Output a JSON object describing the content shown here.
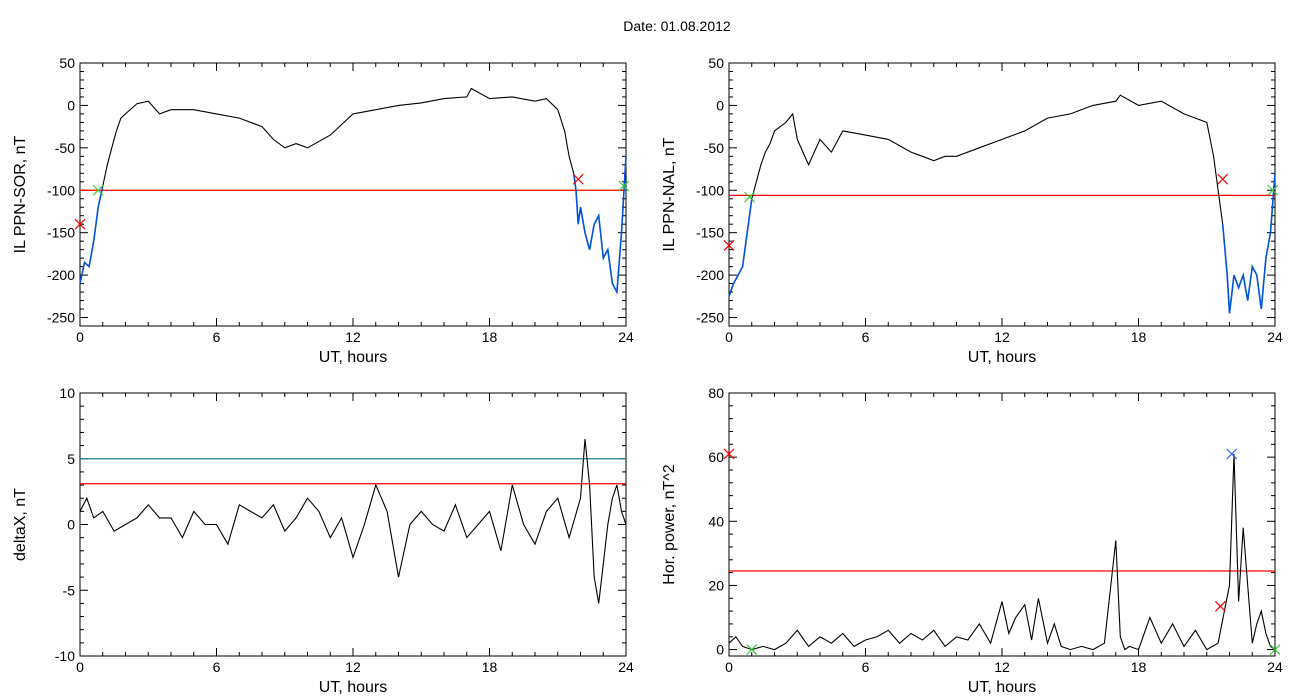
{
  "page": {
    "title": "Date:  01.08.2012"
  },
  "colors": {
    "trace": "#000000",
    "threshold": "#ff0000",
    "blue_segment": "#0055dd",
    "cyan_line": "#1a8a8a",
    "green_mark": "#33cc33",
    "blue_mark": "#3366ff"
  },
  "chart_data": [
    {
      "type": "line",
      "xlabel": "UT, hours",
      "ylabel": "IL PPN-SOR, nT",
      "xlim": [
        0,
        24
      ],
      "ylim": [
        -260,
        50
      ],
      "xticks": [
        0,
        6,
        12,
        18,
        24
      ],
      "yticks": [
        50,
        0,
        -50,
        -100,
        -150,
        -200,
        -250
      ],
      "x": [
        0,
        0.2,
        0.4,
        0.6,
        0.8,
        1.0,
        1.2,
        1.4,
        1.6,
        1.8,
        2.0,
        2.5,
        3.0,
        3.5,
        4.0,
        5.0,
        6.0,
        7.0,
        8.0,
        8.5,
        9.0,
        9.5,
        10.0,
        11.0,
        12.0,
        13.0,
        14.0,
        15.0,
        16.0,
        17.0,
        17.2,
        18.0,
        19.0,
        20.0,
        20.5,
        21.0,
        21.3,
        21.5,
        21.7,
        21.8,
        21.9,
        22.0,
        22.2,
        22.4,
        22.6,
        22.8,
        23.0,
        23.2,
        23.4,
        23.6,
        23.8,
        24.0
      ],
      "y": [
        -210,
        -185,
        -190,
        -160,
        -120,
        -95,
        -70,
        -50,
        -30,
        -15,
        -10,
        2,
        5,
        -10,
        -5,
        -5,
        -10,
        -15,
        -25,
        -40,
        -50,
        -45,
        -50,
        -35,
        -10,
        -5,
        0,
        3,
        8,
        10,
        20,
        8,
        10,
        5,
        8,
        -5,
        -30,
        -60,
        -80,
        -100,
        -140,
        -120,
        -150,
        -170,
        -140,
        -130,
        -180,
        -170,
        -210,
        -220,
        -150,
        -60
      ],
      "blue_segments": [
        [
          0,
          1.0
        ],
        [
          21.7,
          24.0
        ]
      ],
      "threshold": -100,
      "markers": [
        {
          "x": 0.0,
          "y": -140,
          "symbol": "x",
          "color": "#ff0000"
        },
        {
          "x": 0.8,
          "y": -100,
          "symbol": "x",
          "color": "#33cc33"
        },
        {
          "x": 21.9,
          "y": -87,
          "symbol": "x",
          "color": "#ff0000"
        },
        {
          "x": 23.9,
          "y": -95,
          "symbol": "x",
          "color": "#33cc33"
        }
      ]
    },
    {
      "type": "line",
      "xlabel": "UT, hours",
      "ylabel": "IL PPN-NAL, nT",
      "xlim": [
        0,
        24
      ],
      "ylim": [
        -260,
        50
      ],
      "xticks": [
        0,
        6,
        12,
        18,
        24
      ],
      "yticks": [
        50,
        0,
        -50,
        -100,
        -150,
        -200,
        -250
      ],
      "x": [
        0,
        0.2,
        0.4,
        0.6,
        0.8,
        1.0,
        1.2,
        1.4,
        1.6,
        1.8,
        2.0,
        2.5,
        2.8,
        3.0,
        3.5,
        4.0,
        4.5,
        5.0,
        6.0,
        7.0,
        8.0,
        8.5,
        9.0,
        9.5,
        10.0,
        11.0,
        12.0,
        13.0,
        14.0,
        15.0,
        16.0,
        17.0,
        17.2,
        18.0,
        19.0,
        20.0,
        21.0,
        21.3,
        21.5,
        21.7,
        21.9,
        22.0,
        22.2,
        22.4,
        22.6,
        22.8,
        23.0,
        23.2,
        23.4,
        23.6,
        23.8,
        24.0
      ],
      "y": [
        -225,
        -210,
        -200,
        -190,
        -150,
        -110,
        -90,
        -70,
        -55,
        -45,
        -30,
        -20,
        -10,
        -40,
        -70,
        -40,
        -55,
        -30,
        -35,
        -40,
        -55,
        -60,
        -65,
        -60,
        -60,
        -50,
        -40,
        -30,
        -15,
        -10,
        0,
        5,
        12,
        0,
        5,
        -10,
        -20,
        -60,
        -100,
        -140,
        -200,
        -245,
        -200,
        -215,
        -200,
        -230,
        -190,
        -200,
        -240,
        -180,
        -150,
        -80
      ],
      "blue_segments": [
        [
          0,
          1.0
        ],
        [
          21.7,
          24.0
        ]
      ],
      "threshold": -106,
      "markers": [
        {
          "x": 0.0,
          "y": -165,
          "symbol": "x",
          "color": "#ff0000"
        },
        {
          "x": 0.9,
          "y": -108,
          "symbol": "x",
          "color": "#33cc33"
        },
        {
          "x": 21.7,
          "y": -87,
          "symbol": "x",
          "color": "#ff0000"
        },
        {
          "x": 23.9,
          "y": -100,
          "symbol": "x",
          "color": "#33cc33"
        }
      ]
    },
    {
      "type": "line",
      "xlabel": "UT, hours",
      "ylabel": "deltaX, nT",
      "xlim": [
        0,
        24
      ],
      "ylim": [
        -10,
        10
      ],
      "xticks": [
        0,
        6,
        12,
        18,
        24
      ],
      "yticks": [
        10,
        5,
        0,
        -5,
        -10
      ],
      "x": [
        0,
        0.3,
        0.6,
        1.0,
        1.5,
        2.0,
        2.5,
        3.0,
        3.5,
        4.0,
        4.5,
        5.0,
        5.5,
        6.0,
        6.5,
        7.0,
        7.5,
        8.0,
        8.5,
        9.0,
        9.5,
        10.0,
        10.5,
        11.0,
        11.5,
        12.0,
        12.5,
        13.0,
        13.5,
        14.0,
        14.5,
        15.0,
        15.5,
        16.0,
        16.5,
        17.0,
        17.5,
        18.0,
        18.5,
        19.0,
        19.5,
        20.0,
        20.5,
        21.0,
        21.5,
        22.0,
        22.2,
        22.4,
        22.6,
        22.8,
        23.0,
        23.2,
        23.4,
        23.6,
        23.8,
        24.0
      ],
      "y": [
        1,
        2,
        0.5,
        1,
        -0.5,
        0,
        0.5,
        1.5,
        0.5,
        0.5,
        -1,
        1,
        0,
        0,
        -1.5,
        1.5,
        1,
        0.5,
        1.5,
        -0.5,
        0.5,
        2,
        1,
        -1,
        0.5,
        -2.5,
        0,
        3,
        1,
        -4,
        0,
        1,
        0,
        -0.5,
        1.5,
        -1,
        0,
        1,
        -2,
        3,
        0,
        -1.5,
        1,
        2,
        -1,
        2,
        6.5,
        3,
        -4,
        -6,
        -3,
        0,
        2,
        3,
        1,
        0
      ],
      "thresholds": [
        {
          "value": 5,
          "color": "#1a8a8a"
        },
        {
          "value": 3.1,
          "color": "#ff0000"
        }
      ],
      "markers": []
    },
    {
      "type": "line",
      "xlabel": "UT, hours",
      "ylabel": "Hor. power, nT^2",
      "xlim": [
        0,
        24
      ],
      "ylim": [
        -2,
        80
      ],
      "xticks": [
        0,
        6,
        12,
        18,
        24
      ],
      "yticks": [
        80,
        60,
        40,
        20,
        0
      ],
      "x": [
        0,
        0.3,
        0.6,
        1.0,
        1.5,
        2.0,
        2.5,
        3.0,
        3.5,
        4.0,
        4.5,
        5.0,
        5.5,
        6.0,
        6.5,
        7.0,
        7.5,
        8.0,
        8.5,
        9.0,
        9.5,
        10.0,
        10.5,
        11.0,
        11.5,
        12.0,
        12.3,
        12.6,
        13.0,
        13.3,
        13.6,
        14.0,
        14.3,
        14.6,
        15.0,
        15.5,
        16.0,
        16.5,
        17.0,
        17.2,
        17.4,
        17.6,
        18.0,
        18.5,
        19.0,
        19.5,
        20.0,
        20.5,
        21.0,
        21.5,
        21.8,
        22.0,
        22.2,
        22.4,
        22.6,
        22.8,
        23.0,
        23.2,
        23.4,
        23.6,
        23.8,
        24.0
      ],
      "y": [
        2,
        4,
        1,
        0,
        1,
        0,
        2,
        6,
        1,
        4,
        2,
        5,
        1,
        3,
        4,
        6,
        2,
        5,
        3,
        6,
        1,
        4,
        3,
        8,
        2,
        15,
        5,
        10,
        14,
        3,
        16,
        2,
        8,
        1,
        0,
        1,
        0,
        2,
        34,
        4,
        0,
        1,
        0,
        10,
        2,
        8,
        1,
        6,
        0,
        2,
        13,
        20,
        61,
        15,
        38,
        20,
        2,
        8,
        12,
        5,
        1,
        0
      ],
      "thresholds": [
        {
          "value": 24.5,
          "color": "#ff0000"
        }
      ],
      "markers": [
        {
          "x": 0.0,
          "y": 61,
          "symbol": "x",
          "color": "#ff0000"
        },
        {
          "x": 1.0,
          "y": 0,
          "symbol": "x",
          "color": "#33cc33"
        },
        {
          "x": 21.6,
          "y": 13.5,
          "symbol": "x",
          "color": "#ff0000"
        },
        {
          "x": 22.1,
          "y": 61,
          "symbol": "x",
          "color": "#3366ff"
        },
        {
          "x": 24.0,
          "y": 0,
          "symbol": "x",
          "color": "#33cc33"
        }
      ]
    }
  ]
}
